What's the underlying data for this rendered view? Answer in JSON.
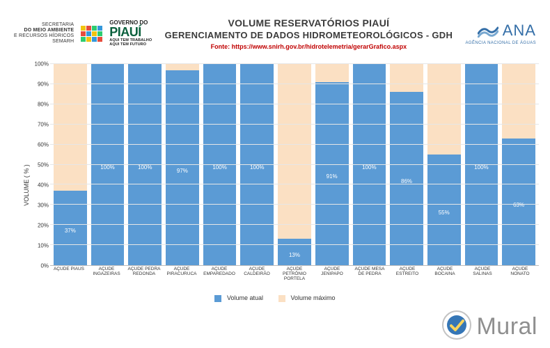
{
  "header": {
    "secretaria_l1": "SECRETARIA",
    "secretaria_l2": "DO MEIO AMBIENTE",
    "secretaria_l3": "E RECURSOS HÍDRICOS",
    "secretaria_l4": "SEMARH",
    "gov_top": "GOVERNO DO",
    "gov_big": "PIAUÍ",
    "gov_tag1": "AQUI TEM TRABALHO",
    "gov_tag2": "AQUI TEM FUTURO",
    "flag_colors": [
      [
        "#f1c40f",
        "#e74c3c",
        "#2ecc71",
        "#3498db"
      ],
      [
        "#e74c3c",
        "#3498db",
        "#f1c40f",
        "#2ecc71"
      ],
      [
        "#2ecc71",
        "#f1c40f",
        "#3498db",
        "#e74c3c"
      ]
    ],
    "title1": "VOLUME RESERVATÓRIOS PIAUÍ",
    "title2": "GERENCIAMENTO DE DADOS HIDROMETEOROLÓGICOS - GDH",
    "source": "Fonte: https://www.snirh.gov.br/hidrotelemetria/gerarGrafico.aspx",
    "ana_text": "ANA",
    "ana_sub": "AGÊNCIA NACIONAL DE ÁGUAS",
    "ana_color": "#356fa8"
  },
  "chart": {
    "type": "stacked-bar-100",
    "ylabel": "VOLUME ( % )",
    "ylim": [
      0,
      100
    ],
    "ytick_step": 10,
    "grid_color": "#e6e6e6",
    "background_color": "#ffffff",
    "colors": {
      "atual": "#5b9bd5",
      "maximo": "#fbe0c3"
    },
    "label_color": "#ffffff",
    "label_fontsize": 8,
    "axis_fontsize": 8,
    "categories": [
      "AÇUDE PIAUS",
      "AÇUDE INGAZEIRAS",
      "AÇUDE PEDRA REDONDA",
      "AÇUDE PIRACURUCA",
      "AÇUDE EMPAREDADO",
      "AÇUDE CALDEIRÃO",
      "AÇUDE PETRÔNIO PORTELA",
      "AÇUDE JENIPAPO",
      "AÇUDE MESA DE PEDRA",
      "AÇUDE ESTREITO",
      "AÇUDE BOCAINA",
      "AÇUDE SALINAS",
      "AÇUDE NONATO"
    ],
    "values_atual": [
      37,
      100,
      100,
      97,
      100,
      100,
      13,
      91,
      100,
      86,
      55,
      100,
      63
    ],
    "legend": {
      "atual": "Volume atual",
      "maximo": "Volume máximo"
    }
  },
  "watermark": {
    "text": "Mural"
  }
}
